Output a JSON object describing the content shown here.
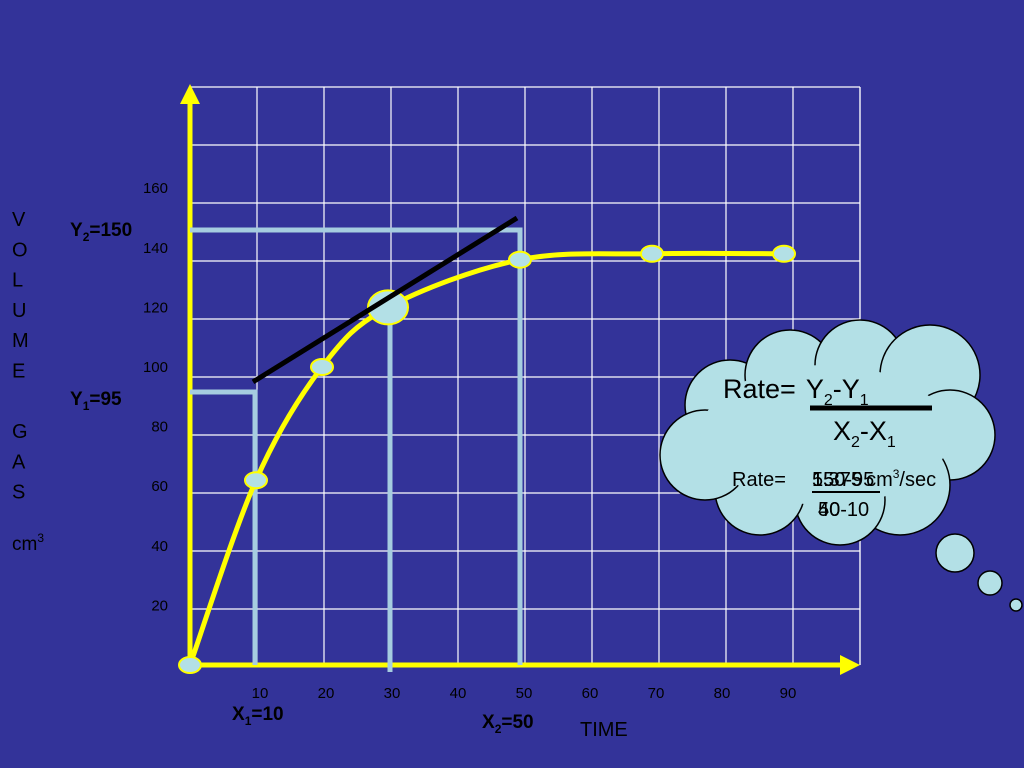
{
  "chart_data": {
    "type": "line",
    "xlabel": "TIME",
    "ylabel_letters": [
      "V",
      "O",
      "L",
      "U",
      "M",
      "E",
      "",
      "G",
      "A",
      "S"
    ],
    "ylabel_unit": "cm",
    "ylabel_unit_sup": "3",
    "x_ticks": [
      10,
      20,
      30,
      40,
      50,
      60,
      70,
      80,
      90
    ],
    "y_ticks": [
      20,
      40,
      60,
      80,
      100,
      120,
      140,
      160
    ],
    "grid": true,
    "series": [
      {
        "points": [
          {
            "x": 0,
            "y": 0
          },
          {
            "x": 10,
            "y": 62
          },
          {
            "x": 20,
            "y": 100
          },
          {
            "x": 30,
            "y": 120
          },
          {
            "x": 50,
            "y": 136
          },
          {
            "x": 70,
            "y": 138
          },
          {
            "x": 90,
            "y": 138
          }
        ],
        "color": "#ffff00"
      }
    ],
    "tangent": {
      "x1": 10,
      "y1": 95,
      "x2": 50,
      "y2": 150,
      "color": "#000000"
    },
    "annotations": {
      "y2": {
        "label": "Y",
        "sub": "2",
        "value": "=150"
      },
      "y1": {
        "label": "Y",
        "sub": "1",
        "value": "=95"
      },
      "x1": {
        "label": "X",
        "sub": "1",
        "value": "=10"
      },
      "x2": {
        "label": "X",
        "sub": "2",
        "value": "=50"
      }
    },
    "formula": {
      "prefix": "Rate=",
      "num_a": "Y",
      "num_a_sub": "2",
      "num_b": "-Y",
      "num_b_sub": "1",
      "den_a": "X",
      "den_a_sub": "2",
      "den_b": "-X",
      "den_b_sub": "1"
    },
    "result": {
      "prefix": "Rate=",
      "numerator": "150-95",
      "value": "1.375",
      "overlap": "55",
      "unit": "cm",
      "unit_sup": "3",
      "unit_suffix": "/sec",
      "denominator": "50-10",
      "den_overlap": "40"
    },
    "colors": {
      "background": "#333399",
      "axis": "#ffff00",
      "grid": "#ffffff",
      "guide": "#a6cde0",
      "cloud": "#b3e0e6",
      "marker": "#b3e0e6"
    }
  }
}
